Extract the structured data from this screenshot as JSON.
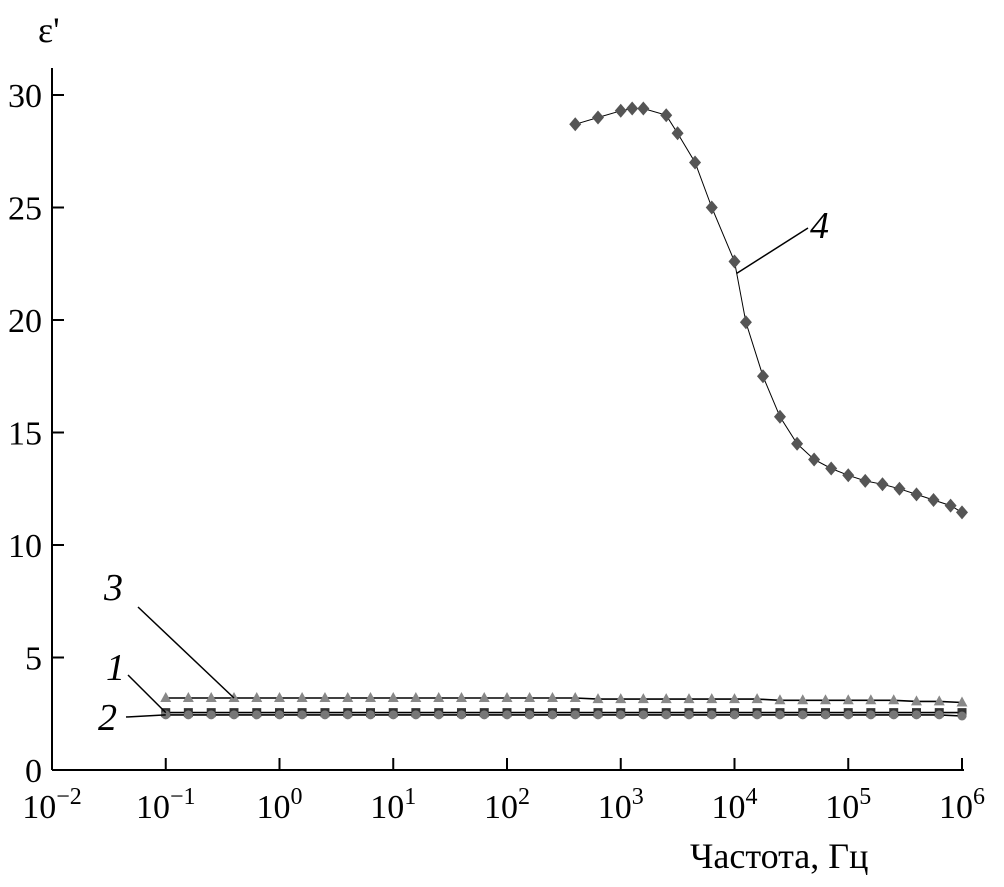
{
  "chart_data": {
    "type": "scatter",
    "title": "",
    "xlabel": "Частота, Гц",
    "ylabel": "ε'",
    "x_scale": "log",
    "xlim": [
      0.01,
      1000000
    ],
    "ylim": [
      0,
      30
    ],
    "grid": false,
    "x_ticks": [
      {
        "base": "10",
        "exp": "−2"
      },
      {
        "base": "10",
        "exp": "−1"
      },
      {
        "base": "10",
        "exp": "0"
      },
      {
        "base": "10",
        "exp": "1"
      },
      {
        "base": "10",
        "exp": "2"
      },
      {
        "base": "10",
        "exp": "3"
      },
      {
        "base": "10",
        "exp": "4"
      },
      {
        "base": "10",
        "exp": "5"
      },
      {
        "base": "10",
        "exp": "6"
      }
    ],
    "y_ticks": [
      "0",
      "5",
      "10",
      "15",
      "20",
      "25",
      "30"
    ],
    "series": [
      {
        "name": "1",
        "marker": "square",
        "color": "#333333",
        "x": [
          0.1,
          0.158,
          0.251,
          0.398,
          0.631,
          1,
          1.58,
          2.51,
          3.98,
          6.31,
          10,
          15.8,
          25.1,
          39.8,
          63.1,
          100,
          158,
          251,
          398,
          631,
          1000,
          1580,
          2510,
          3980,
          6310,
          10000,
          15800,
          25100,
          39800,
          63100,
          100000,
          158000,
          251000,
          398000,
          631000,
          1000000
        ],
        "y": [
          2.55,
          2.55,
          2.55,
          2.55,
          2.55,
          2.55,
          2.55,
          2.55,
          2.55,
          2.55,
          2.55,
          2.55,
          2.55,
          2.55,
          2.55,
          2.55,
          2.55,
          2.55,
          2.55,
          2.55,
          2.55,
          2.55,
          2.55,
          2.55,
          2.55,
          2.55,
          2.55,
          2.55,
          2.55,
          2.55,
          2.55,
          2.55,
          2.55,
          2.55,
          2.55,
          2.55
        ]
      },
      {
        "name": "2",
        "marker": "circle",
        "color": "#777777",
        "x": [
          0.1,
          0.158,
          0.251,
          0.398,
          0.631,
          1,
          1.58,
          2.51,
          3.98,
          6.31,
          10,
          15.8,
          25.1,
          39.8,
          63.1,
          100,
          158,
          251,
          398,
          631,
          1000,
          1580,
          2510,
          3980,
          6310,
          10000,
          15800,
          25100,
          39800,
          63100,
          100000,
          158000,
          251000,
          398000,
          631000,
          1000000
        ],
        "y": [
          2.45,
          2.45,
          2.45,
          2.45,
          2.45,
          2.45,
          2.45,
          2.45,
          2.45,
          2.45,
          2.45,
          2.45,
          2.45,
          2.45,
          2.45,
          2.45,
          2.45,
          2.45,
          2.45,
          2.45,
          2.45,
          2.45,
          2.45,
          2.45,
          2.45,
          2.45,
          2.45,
          2.45,
          2.45,
          2.45,
          2.45,
          2.45,
          2.45,
          2.45,
          2.45,
          2.4
        ]
      },
      {
        "name": "3",
        "marker": "triangle",
        "color": "#888888",
        "x": [
          0.1,
          0.158,
          0.251,
          0.398,
          0.631,
          1,
          1.58,
          2.51,
          3.98,
          6.31,
          10,
          15.8,
          25.1,
          39.8,
          63.1,
          100,
          158,
          251,
          398,
          631,
          1000,
          1580,
          2510,
          3980,
          6310,
          10000,
          15800,
          25100,
          39800,
          63100,
          100000,
          158000,
          251000,
          398000,
          631000,
          1000000
        ],
        "y": [
          3.2,
          3.2,
          3.2,
          3.2,
          3.2,
          3.2,
          3.2,
          3.2,
          3.2,
          3.2,
          3.2,
          3.2,
          3.2,
          3.2,
          3.2,
          3.2,
          3.2,
          3.2,
          3.2,
          3.15,
          3.15,
          3.15,
          3.15,
          3.15,
          3.15,
          3.15,
          3.15,
          3.1,
          3.1,
          3.1,
          3.1,
          3.1,
          3.1,
          3.05,
          3.05,
          3.0
        ]
      },
      {
        "name": "4",
        "marker": "diamond",
        "color": "#555555",
        "x": [
          398,
          631,
          1000,
          1260,
          1580,
          2510,
          3160,
          4500,
          6310,
          10000,
          12600,
          17800,
          25100,
          35500,
          50100,
          70800,
          100000,
          141000,
          200000,
          282000,
          398000,
          562000,
          794000,
          1000000
        ],
        "y": [
          28.7,
          29.0,
          29.3,
          29.4,
          29.4,
          29.1,
          28.3,
          27.0,
          25.0,
          22.6,
          19.9,
          17.5,
          15.7,
          14.5,
          13.8,
          13.4,
          13.1,
          12.85,
          12.7,
          12.5,
          12.25,
          12.0,
          11.75,
          11.45
        ]
      }
    ],
    "curve_labels": [
      "1",
      "2",
      "3",
      "4"
    ]
  }
}
